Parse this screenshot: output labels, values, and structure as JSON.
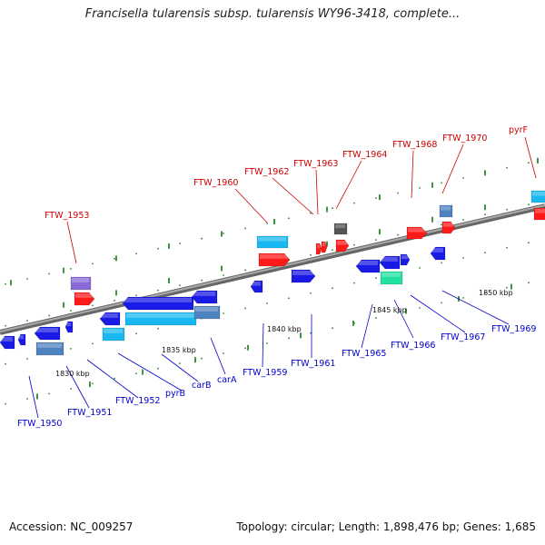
{
  "title": "Francisella tularensis subsp. tularensis WY96-3418, complete...",
  "footer": {
    "accession": "Accession: NC_009257",
    "stats": "Topology: circular; Length: 1,898,476 bp; Genes: 1,685"
  },
  "colors": {
    "upper_label": "#cc0000",
    "lower_label": "#0000cc",
    "backbone": "#7a7a7a",
    "tick": "#2a8a2a",
    "gene_blue": "#1a1ae6",
    "gene_red": "#ff1a1a",
    "gene_cyan": "#1ab8f0",
    "gene_steel": "#4f82c0",
    "gene_purple": "#8a6ad8",
    "gene_gray": "#555555",
    "gene_green": "#22e0a0"
  },
  "scale_labels": [
    "1830 kbp",
    "1835 kbp",
    "1840 kbp",
    "1845 kbp",
    "1850 kbp"
  ],
  "upper_labels": [
    "FTW_1953",
    "FTW_1960",
    "FTW_1962",
    "FTW_1963",
    "FTW_1964",
    "FTW_1968",
    "FTW_1970",
    "pyrF"
  ],
  "lower_labels": [
    "FTW_1950",
    "FTW_1951",
    "FTW_1952",
    "pyrB",
    "carB",
    "carA",
    "FTW_1959",
    "FTW_1961",
    "FTW_1965",
    "FTW_1966",
    "FTW_1967",
    "FTW_1969"
  ]
}
